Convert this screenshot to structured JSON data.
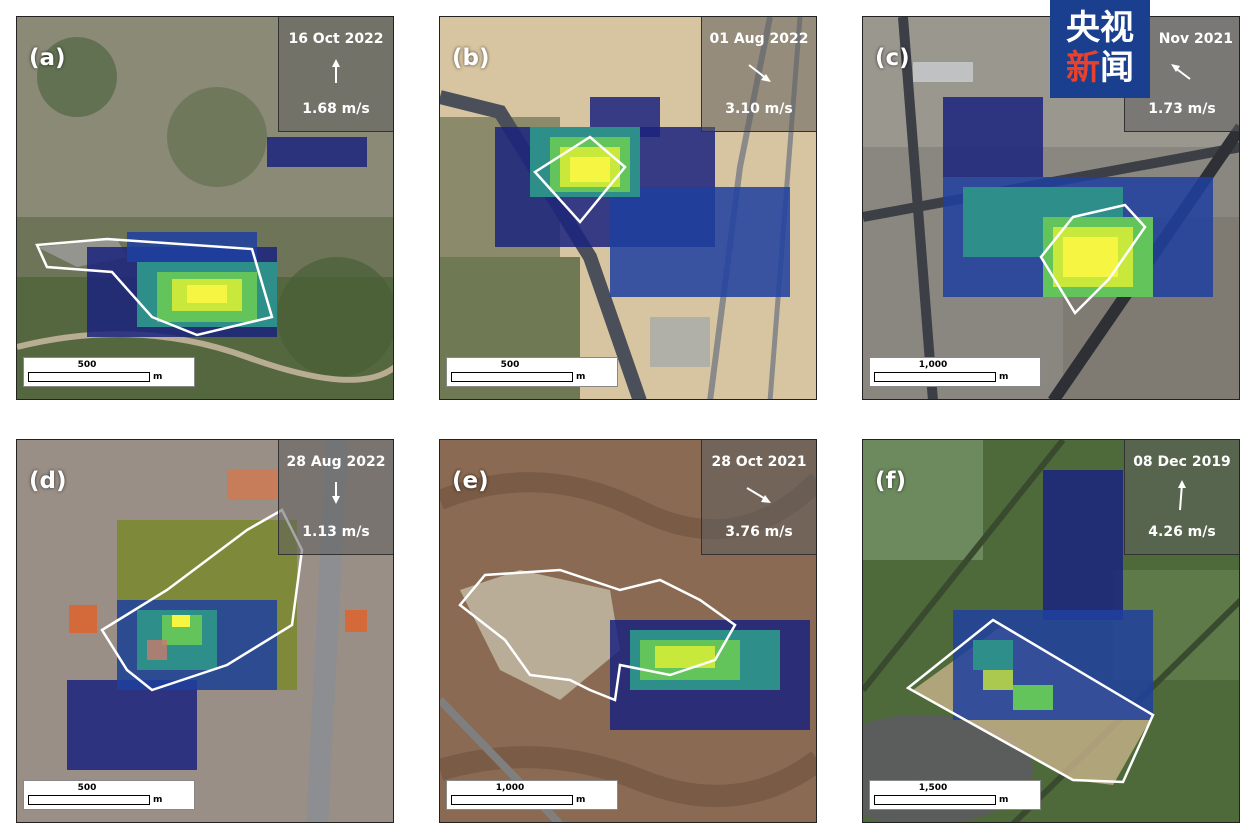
{
  "panels": [
    {
      "id": "a",
      "label": "(a)",
      "date": "16 Oct 2022",
      "speed": "1.68 m/s",
      "scale": "500",
      "unit": "m"
    },
    {
      "id": "b",
      "label": "(b)",
      "date": "01 Aug 2022",
      "speed": "3.10 m/s",
      "scale": "500",
      "unit": "m"
    },
    {
      "id": "c",
      "label": "(c)",
      "date": "Nov 2021",
      "speed": "1.73 m/s",
      "scale": "1,000",
      "unit": "m"
    },
    {
      "id": "d",
      "label": "(d)",
      "date": "28 Aug 2022",
      "speed": "1.13 m/s",
      "scale": "500",
      "unit": "m"
    },
    {
      "id": "e",
      "label": "(e)",
      "date": "28 Oct 2021",
      "speed": "3.76 m/s",
      "scale": "1,000",
      "unit": "m"
    },
    {
      "id": "f",
      "label": "(f)",
      "date": "08 Dec 2019",
      "speed": "4.26 m/s",
      "scale": "1,500",
      "unit": "m"
    }
  ],
  "logo": {
    "line1": "央视",
    "line2_a": "新",
    "line2_b": "闻"
  },
  "colors": {
    "plume_low": "#1a237e",
    "plume_mid": "#2aa87e",
    "plume_high": "#f5f542",
    "outline": "#ffffff"
  }
}
